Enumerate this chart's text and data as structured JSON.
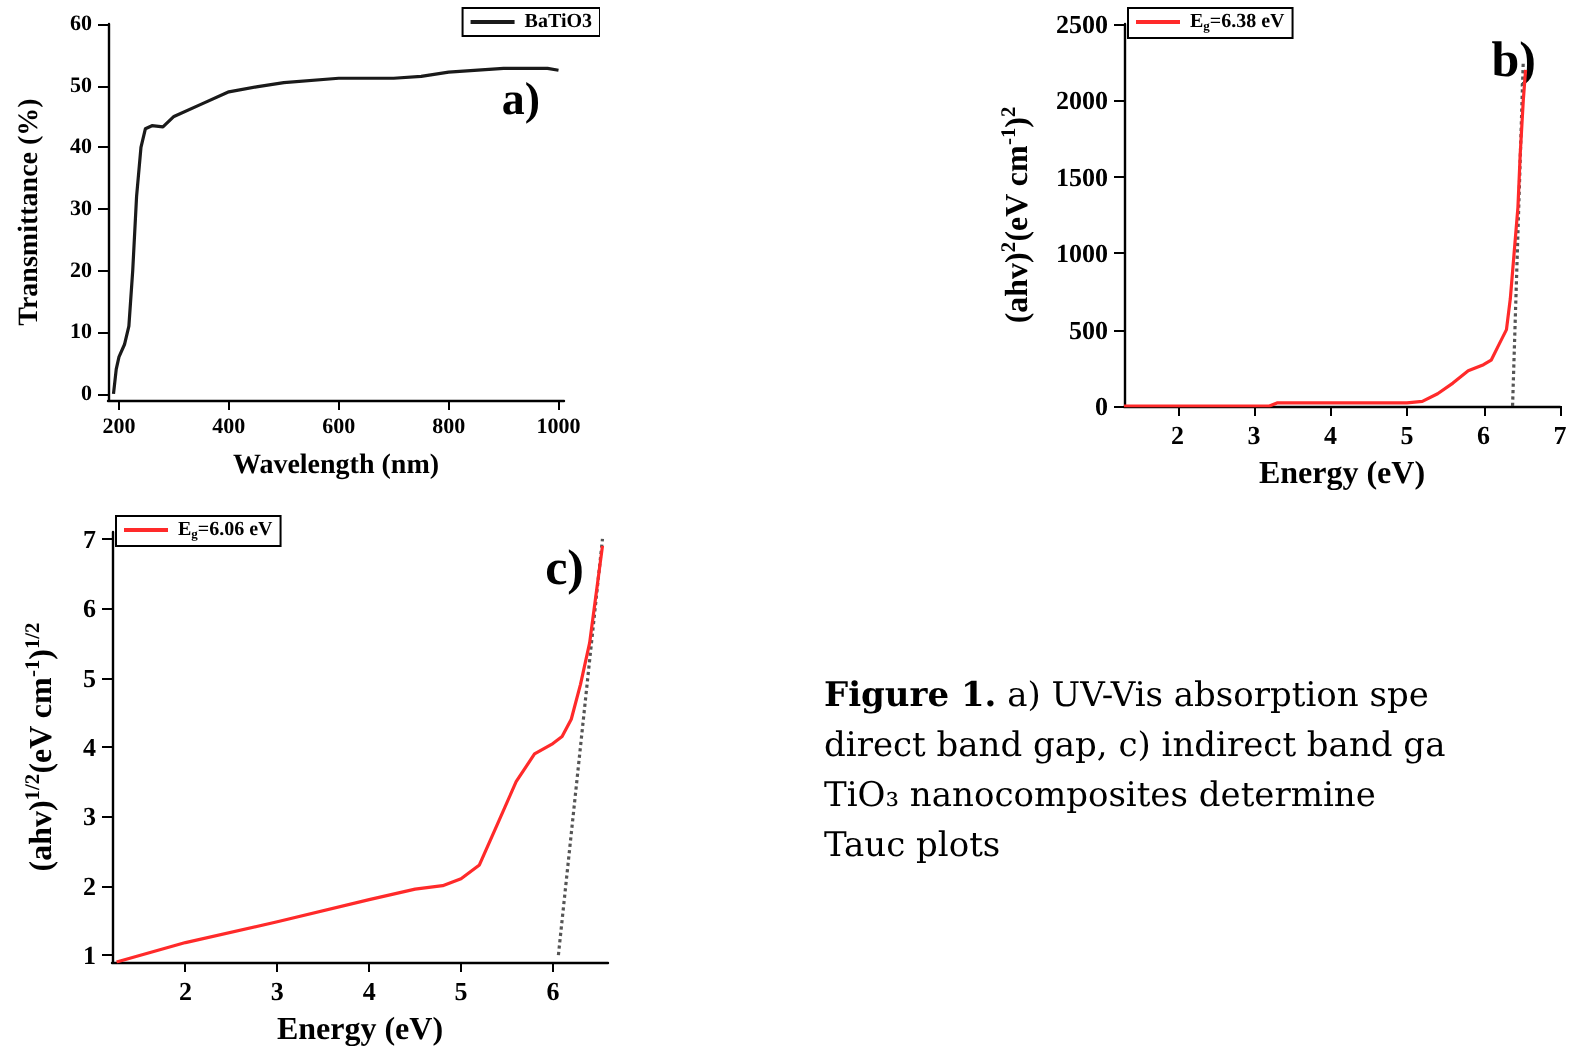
{
  "chart_data": [
    {
      "type": "line",
      "xlabel": "Wavelength (nm)",
      "ylabel": "Transmittance (%)",
      "xlim": [
        180,
        1010
      ],
      "xticks": [
        200,
        400,
        600,
        800,
        1000
      ],
      "ylim": [
        -1,
        60
      ],
      "yticks": [
        0,
        10,
        20,
        30,
        40,
        50,
        60
      ],
      "grid": false,
      "legend": "top right",
      "marker": "none",
      "annotations": [
        "a)"
      ],
      "series": [
        {
          "name": "BaTiO3",
          "color": "#1a1a1a",
          "x": [
            190,
            195,
            200,
            210,
            218,
            225,
            232,
            240,
            248,
            260,
            280,
            300,
            350,
            400,
            450,
            500,
            600,
            700,
            750,
            800,
            900,
            980,
            1000
          ],
          "values": [
            0,
            4,
            6,
            8,
            11,
            20,
            32,
            40,
            43,
            43.5,
            43.3,
            45,
            47,
            49,
            49.8,
            50.5,
            51.2,
            51.2,
            51.5,
            52.2,
            52.8,
            52.8,
            52.5
          ]
        }
      ]
    },
    {
      "type": "line",
      "xlabel": "Energy (eV)",
      "ylabel": "(ahv)$^{2}$(eV cm$^{-1}$)$^{2}$",
      "xlim": [
        1.3,
        7
      ],
      "xticks": [
        2,
        3,
        4,
        5,
        6,
        7
      ],
      "ylim": [
        0,
        2500
      ],
      "yticks": [
        0,
        500,
        1000,
        1500,
        2000,
        2500
      ],
      "grid": false,
      "legend": "top left",
      "marker": "none",
      "annotations": [
        "b)"
      ],
      "series": [
        {
          "name": "E$_{g}$=6.38 eV",
          "color": "#ff2a2a",
          "line_style": "solid",
          "x": [
            1.3,
            3.2,
            3.3,
            5.0,
            5.2,
            5.4,
            5.6,
            5.8,
            6.0,
            6.1,
            6.2,
            6.3,
            6.35,
            6.4,
            6.45,
            6.48,
            6.52,
            6.55
          ],
          "values": [
            0,
            0,
            20,
            20,
            30,
            80,
            150,
            230,
            270,
            300,
            400,
            500,
            700,
            1000,
            1300,
            1650,
            2000,
            2200
          ]
        },
        {
          "color": "#555555",
          "line_style": "dotted",
          "x": [
            6.38,
            6.52
          ],
          "values": [
            0,
            2260
          ]
        }
      ]
    },
    {
      "type": "line",
      "xlabel": "Energy (eV)",
      "ylabel": "(ahv)$^{1/2}$(eV cm$^{-1}$)$^{1/2}$",
      "xlim": [
        1.2,
        6.6
      ],
      "xticks": [
        2,
        3,
        4,
        5,
        6
      ],
      "ylim": [
        0.9,
        7.1
      ],
      "yticks": [
        1,
        2,
        3,
        4,
        5,
        6,
        7
      ],
      "grid": false,
      "legend": "top left",
      "marker": "none",
      "annotations": [
        "c)"
      ],
      "series": [
        {
          "name": "E$_{g}$=6.06 eV",
          "color": "#ff2a2a",
          "line_style": "solid",
          "x": [
            1.25,
            2,
            3,
            4,
            4.5,
            4.8,
            5.0,
            5.2,
            5.4,
            5.6,
            5.8,
            6.0,
            6.1,
            6.2,
            6.3,
            6.4,
            6.45,
            6.5,
            6.54
          ],
          "values": [
            0.9,
            1.18,
            1.48,
            1.8,
            1.95,
            2.0,
            2.1,
            2.3,
            2.9,
            3.5,
            3.9,
            4.05,
            4.15,
            4.4,
            4.9,
            5.5,
            6.0,
            6.5,
            6.9
          ]
        },
        {
          "color": "#555555",
          "line_style": "dotted",
          "x": [
            6.06,
            6.54
          ],
          "values": [
            1,
            7
          ]
        }
      ]
    },
    {
      "type": "other",
      "annotations": [
        "Figure 1. a) UV-Vis absorption spe",
        "direct band gap, c) indirect band ga",
        "TiO₃ nanocomposites determine",
        "Tauc plots"
      ]
    }
  ]
}
